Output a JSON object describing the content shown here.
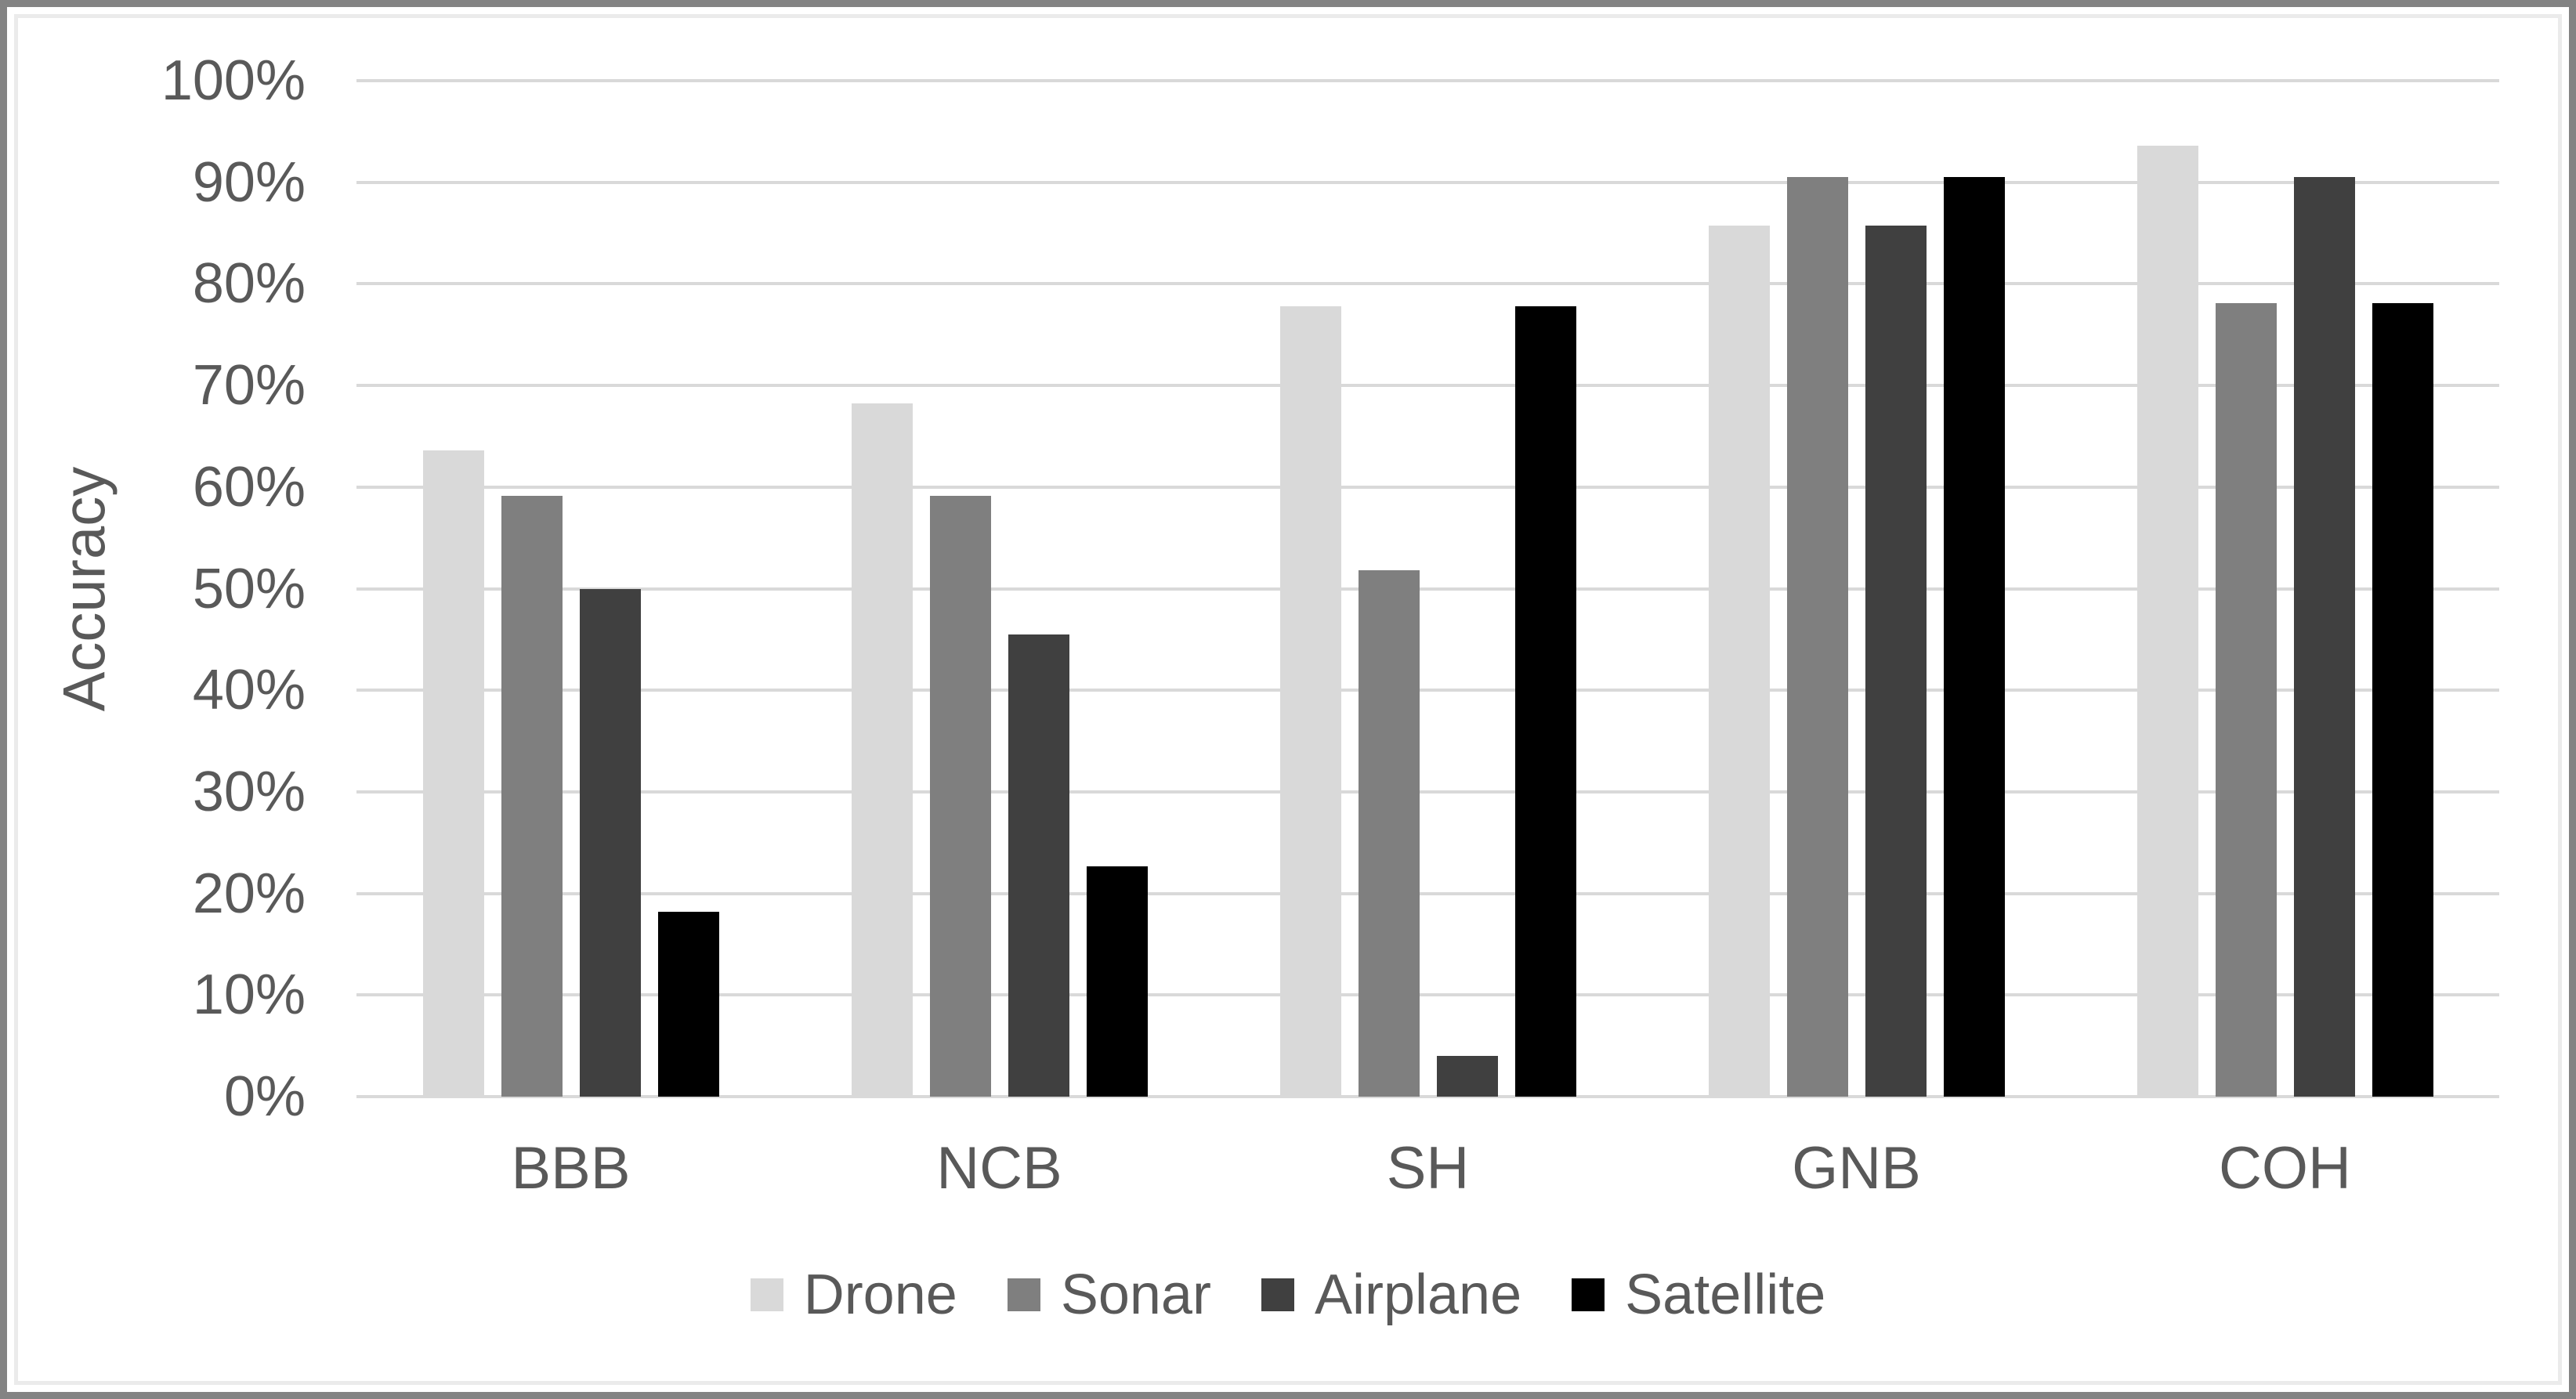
{
  "chart_data": {
    "type": "bar",
    "title": "",
    "xlabel": "",
    "ylabel": "Accuracy",
    "categories": [
      "BBB",
      "NCB",
      "SH",
      "GNB",
      "COH"
    ],
    "series": [
      {
        "name": "Drone",
        "color": "#d9d9d9",
        "values": [
          63.6,
          68.2,
          77.8,
          85.7,
          93.6
        ]
      },
      {
        "name": "Sonar",
        "color": "#7f7f7f",
        "values": [
          59.1,
          59.1,
          51.8,
          90.5,
          78.1
        ]
      },
      {
        "name": "Airplane",
        "color": "#404040",
        "values": [
          50.0,
          45.5,
          4.0,
          85.7,
          90.5
        ]
      },
      {
        "name": "Satellite",
        "color": "#000000",
        "values": [
          18.2,
          22.7,
          77.8,
          90.5,
          78.1
        ]
      }
    ],
    "ylim": [
      0,
      100
    ],
    "y_ticks": [
      0,
      10,
      20,
      30,
      40,
      50,
      60,
      70,
      80,
      90,
      100
    ],
    "y_tick_labels": [
      "0%",
      "10%",
      "20%",
      "30%",
      "40%",
      "50%",
      "60%",
      "70%",
      "80%",
      "90%",
      "100%"
    ],
    "grid": "horizontal",
    "legend_position": "bottom"
  },
  "colors": {
    "axis_text": "#595959",
    "gridline": "#d9d9d9",
    "border_outer": "#838383",
    "border_inner": "#ebebeb",
    "background": "#ffffff"
  }
}
